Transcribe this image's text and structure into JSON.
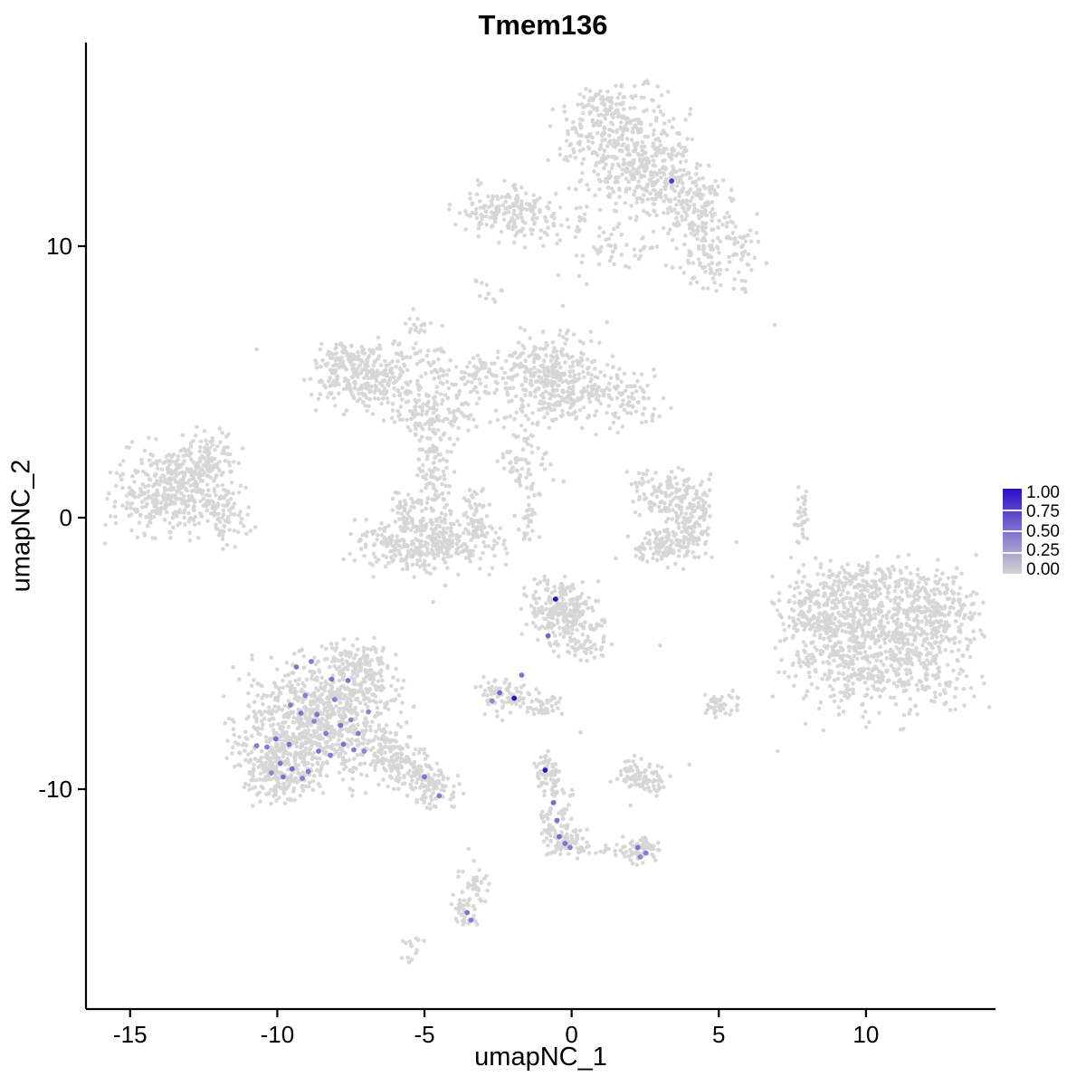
{
  "title": "Tmem136",
  "axes": {
    "x": {
      "label": "umapNC_1",
      "tick_labels": [
        "-15",
        "-10",
        "-5",
        "0",
        "5",
        "10"
      ],
      "tick_values": [
        -15,
        -10,
        -5,
        0,
        5,
        10
      ],
      "domain": [
        -16.5,
        14.4
      ]
    },
    "y": {
      "label": "umapNC_2",
      "tick_labels": [
        "10",
        "0",
        "-10"
      ],
      "tick_values": [
        10,
        0,
        -10
      ],
      "domain": [
        -18.1,
        17.5
      ]
    }
  },
  "legend": {
    "labels": [
      "1.00",
      "0.75",
      "0.50",
      "0.25",
      "0.00"
    ],
    "high_color": "#2C0FC9",
    "low_color": "#D3D3D3"
  },
  "style": {
    "gray_point_color": "#D6D6D6",
    "axis_color": "#000000",
    "text_color": "#000000",
    "background": "#FFFFFF"
  },
  "chart_data": {
    "type": "scatter",
    "title": "Tmem136",
    "xlabel": "umapNC_1",
    "ylabel": "umapNC_2",
    "xlim": [
      -16.5,
      14.4
    ],
    "ylim": [
      -18.1,
      17.5
    ],
    "grid": false,
    "legend_position": "right",
    "legend_scale": {
      "min": 0.0,
      "max": 1.0,
      "breaks": [
        1.0,
        0.75,
        0.5,
        0.25,
        0.0
      ]
    },
    "colors": {
      "low": "#D3D3D3",
      "high": "#2C0FC9"
    },
    "background_clusters": [
      {
        "id": "top-main",
        "cx": 1.6,
        "cy": 14.0,
        "sx": 1.05,
        "sy": 0.95,
        "n": 340
      },
      {
        "id": "top-spur",
        "cx": 1.0,
        "cy": 15.3,
        "sx": 0.35,
        "sy": 0.3,
        "n": 28
      },
      {
        "id": "top-lower",
        "cx": 2.9,
        "cy": 12.5,
        "sx": 0.85,
        "sy": 0.75,
        "n": 220
      },
      {
        "id": "top-right-a",
        "cx": 4.1,
        "cy": 11.6,
        "sx": 0.6,
        "sy": 0.55,
        "n": 110
      },
      {
        "id": "top-right-b",
        "cx": 4.9,
        "cy": 9.9,
        "sx": 0.75,
        "sy": 0.8,
        "n": 150
      },
      {
        "id": "top-below-sparse",
        "cx": 1.4,
        "cy": 10.0,
        "sx": 0.8,
        "sy": 0.65,
        "n": 55
      },
      {
        "id": "top-left-band",
        "cx": -2.4,
        "cy": 11.3,
        "sx": 0.75,
        "sy": 0.5,
        "n": 140
      },
      {
        "id": "top-left-band-b",
        "cx": -0.8,
        "cy": 11.0,
        "sx": 0.8,
        "sy": 0.5,
        "n": 60
      },
      {
        "id": "small-dash-a",
        "cx": -2.9,
        "cy": 8.4,
        "sx": 0.3,
        "sy": 0.25,
        "n": 12
      },
      {
        "id": "streak-a",
        "cx": -5.2,
        "cy": 7.0,
        "sx": 0.18,
        "sy": 0.35,
        "n": 14
      },
      {
        "id": "streak-b",
        "cx": -4.55,
        "cy": 5.2,
        "sx": 0.28,
        "sy": 1.0,
        "n": 50,
        "rot": 15
      },
      {
        "id": "streak-c",
        "cx": -3.8,
        "cy": 3.9,
        "sx": 0.3,
        "sy": 0.55,
        "n": 28
      },
      {
        "id": "mid-left-lobe",
        "cx": -6.9,
        "cy": 5.2,
        "sx": 0.95,
        "sy": 0.6,
        "n": 300
      },
      {
        "id": "mid-left-tail",
        "cx": -7.95,
        "cy": 6.0,
        "sx": 0.35,
        "sy": 0.3,
        "n": 35
      },
      {
        "id": "mid-connector",
        "cx": -5.3,
        "cy": 3.8,
        "sx": 0.5,
        "sy": 0.5,
        "n": 70,
        "rot": -30
      },
      {
        "id": "mid-stem",
        "cx": -4.65,
        "cy": 1.6,
        "sx": 0.32,
        "sy": 1.5,
        "n": 150
      },
      {
        "id": "mid-cup",
        "cx": -4.9,
        "cy": -1.0,
        "sx": 1.25,
        "sy": 0.5,
        "n": 340
      },
      {
        "id": "mid-cup-left",
        "cx": -5.7,
        "cy": 0.2,
        "sx": 0.22,
        "sy": 0.5,
        "n": 50
      },
      {
        "id": "mid-cup-right",
        "cx": -3.2,
        "cy": 0.1,
        "sx": 0.22,
        "sy": 0.5,
        "n": 50
      },
      {
        "id": "mid-right-lobe",
        "cx": -0.7,
        "cy": 5.0,
        "sx": 0.95,
        "sy": 0.85,
        "n": 380
      },
      {
        "id": "mid-right-tail",
        "cx": 1.7,
        "cy": 4.3,
        "sx": 0.75,
        "sy": 0.5,
        "n": 100
      },
      {
        "id": "mid-below-streak",
        "cx": -1.6,
        "cy": 1.9,
        "sx": 0.45,
        "sy": 0.8,
        "n": 70,
        "rot": 20
      },
      {
        "id": "mid-below-dash",
        "cx": -1.5,
        "cy": -0.3,
        "sx": 0.2,
        "sy": 0.45,
        "n": 22
      },
      {
        "id": "mid-bridge",
        "cx": -3.1,
        "cy": 5.2,
        "sx": 0.55,
        "sy": 0.4,
        "n": 55
      },
      {
        "id": "far-left-main",
        "cx": -13.5,
        "cy": 1.0,
        "sx": 1.05,
        "sy": 0.85,
        "n": 450
      },
      {
        "id": "far-left-top",
        "cx": -12.3,
        "cy": 2.3,
        "sx": 0.45,
        "sy": 0.45,
        "n": 70
      },
      {
        "id": "far-left-tail",
        "cx": -11.7,
        "cy": 0.1,
        "sx": 0.4,
        "sy": 0.6,
        "n": 55
      },
      {
        "id": "center-right-a",
        "cx": 3.3,
        "cy": 0.9,
        "sx": 0.7,
        "sy": 0.4,
        "n": 120
      },
      {
        "id": "center-right-b",
        "cx": 3.95,
        "cy": -0.2,
        "sx": 0.45,
        "sy": 0.6,
        "n": 130
      },
      {
        "id": "center-right-c",
        "cx": 3.1,
        "cy": -1.1,
        "sx": 0.6,
        "sy": 0.35,
        "n": 90
      },
      {
        "id": "right-dash",
        "cx": 7.85,
        "cy": 0.2,
        "sx": 0.12,
        "sy": 0.6,
        "n": 32
      },
      {
        "id": "right-main",
        "cx": 10.5,
        "cy": -4.6,
        "sx": 1.55,
        "sy": 1.35,
        "n": 900
      },
      {
        "id": "right-west",
        "cx": 8.5,
        "cy": -3.5,
        "sx": 0.7,
        "sy": 0.8,
        "n": 190
      },
      {
        "id": "right-northeast",
        "cx": 12.5,
        "cy": -3.2,
        "sx": 0.65,
        "sy": 0.6,
        "n": 120
      },
      {
        "id": "right-north-edge",
        "cx": 10.0,
        "cy": -2.4,
        "sx": 0.9,
        "sy": 0.35,
        "n": 80
      },
      {
        "id": "bottomleft-main",
        "cx": -8.6,
        "cy": -7.6,
        "sx": 1.35,
        "sy": 1.15,
        "n": 820
      },
      {
        "id": "bottomleft-south",
        "cx": -9.9,
        "cy": -9.3,
        "sx": 0.65,
        "sy": 0.55,
        "n": 210
      },
      {
        "id": "bottomleft-north",
        "cx": -7.3,
        "cy": -5.7,
        "sx": 0.65,
        "sy": 0.6,
        "n": 170
      },
      {
        "id": "bottomleft-tail-a",
        "cx": -6.0,
        "cy": -8.9,
        "sx": 0.55,
        "sy": 0.45,
        "n": 130,
        "rot": -35
      },
      {
        "id": "bottomleft-tail-b",
        "cx": -4.8,
        "cy": -9.8,
        "sx": 0.5,
        "sy": 0.4,
        "n": 110,
        "rot": -30
      },
      {
        "id": "center-bottom-main",
        "cx": -0.3,
        "cy": -3.4,
        "sx": 0.6,
        "sy": 0.55,
        "n": 230
      },
      {
        "id": "center-bottom-tail",
        "cx": 0.4,
        "cy": -4.6,
        "sx": 0.5,
        "sy": 0.4,
        "n": 60,
        "rot": -25
      },
      {
        "id": "center-bottom-west",
        "cx": -2.3,
        "cy": -6.6,
        "sx": 0.5,
        "sy": 0.38,
        "n": 80,
        "rot": -20
      },
      {
        "id": "center-bottom-knot",
        "cx": -0.9,
        "cy": -6.9,
        "sx": 0.3,
        "sy": 0.25,
        "n": 35
      },
      {
        "id": "stream-top",
        "cx": -0.85,
        "cy": -9.35,
        "sx": 0.25,
        "sy": 0.35,
        "n": 45
      },
      {
        "id": "stream-stem",
        "cx": -0.55,
        "cy": -10.9,
        "sx": 0.28,
        "sy": 0.75,
        "n": 70
      },
      {
        "id": "stream-knot",
        "cx": -0.2,
        "cy": -11.9,
        "sx": 0.4,
        "sy": 0.3,
        "n": 55
      },
      {
        "id": "stream-branch",
        "cx": 1.0,
        "cy": -12.2,
        "sx": 0.85,
        "sy": 0.18,
        "n": 40,
        "rot": -8
      },
      {
        "id": "small-right-blob",
        "cx": 2.35,
        "cy": -9.5,
        "sx": 0.45,
        "sy": 0.28,
        "n": 90,
        "rot": -25
      },
      {
        "id": "small-right-knot",
        "cx": 2.4,
        "cy": -12.2,
        "sx": 0.35,
        "sy": 0.28,
        "n": 55
      },
      {
        "id": "bottom-streak-a",
        "cx": -3.3,
        "cy": -13.5,
        "sx": 0.2,
        "sy": 0.4,
        "n": 35,
        "rot": 15
      },
      {
        "id": "bottom-streak-b",
        "cx": -3.6,
        "cy": -14.5,
        "sx": 0.2,
        "sy": 0.4,
        "n": 38,
        "rot": 15
      },
      {
        "id": "bottom-dash",
        "cx": -5.5,
        "cy": -15.9,
        "sx": 0.22,
        "sy": 0.25,
        "n": 14
      },
      {
        "id": "small-blob-right",
        "cx": 5.1,
        "cy": -6.9,
        "sx": 0.28,
        "sy": 0.25,
        "n": 40
      }
    ],
    "background_singles": [
      [
        -10.7,
        6.2
      ],
      [
        6.9,
        7.1
      ],
      [
        3.0,
        -4.7
      ],
      [
        4.0,
        -9.1
      ],
      [
        -4.3,
        -2.5
      ],
      [
        -4.7,
        -3.1
      ],
      [
        -2.8,
        -2.1
      ],
      [
        0.3,
        -7.9
      ],
      [
        2.0,
        -10.6
      ],
      [
        -3.5,
        -12.2
      ],
      [
        1.5,
        -1.5
      ],
      [
        7.0,
        -8.6
      ],
      [
        -11.5,
        -5.5
      ],
      [
        5.6,
        -0.9
      ],
      [
        -0.3,
        7.8
      ],
      [
        1.2,
        7.2
      ]
    ],
    "expression_points": [
      [
        3.4,
        12.4,
        0.8
      ],
      [
        -0.55,
        -3.0,
        1.0
      ],
      [
        -0.8,
        -4.35,
        0.55
      ],
      [
        -1.7,
        -5.8,
        0.5
      ],
      [
        -2.45,
        -6.45,
        0.55
      ],
      [
        -1.95,
        -6.65,
        1.0
      ],
      [
        -2.7,
        -6.75,
        0.4
      ],
      [
        -0.9,
        -9.3,
        1.0
      ],
      [
        -0.62,
        -10.5,
        0.55
      ],
      [
        -0.5,
        -11.15,
        0.5
      ],
      [
        -0.42,
        -11.75,
        0.55
      ],
      [
        -0.22,
        -12.0,
        0.5
      ],
      [
        -0.05,
        -12.15,
        0.45
      ],
      [
        2.25,
        -12.15,
        0.5
      ],
      [
        2.52,
        -12.35,
        0.45
      ],
      [
        2.33,
        -12.5,
        0.4
      ],
      [
        -3.55,
        -14.55,
        0.5
      ],
      [
        -3.42,
        -14.82,
        0.45
      ],
      [
        -5.0,
        -9.55,
        0.5
      ],
      [
        -4.5,
        -10.25,
        0.45
      ],
      [
        -9.35,
        -5.5,
        0.5
      ],
      [
        -8.85,
        -5.3,
        0.45
      ],
      [
        -7.6,
        -6.0,
        0.5
      ],
      [
        -8.05,
        -6.7,
        0.45
      ],
      [
        -9.2,
        -7.2,
        0.5
      ],
      [
        -8.75,
        -7.5,
        0.4
      ],
      [
        -10.05,
        -8.15,
        0.55
      ],
      [
        -9.6,
        -8.35,
        0.5
      ],
      [
        -10.35,
        -8.45,
        0.45
      ],
      [
        -8.6,
        -8.6,
        0.5
      ],
      [
        -8.2,
        -8.75,
        0.45
      ],
      [
        -9.9,
        -9.05,
        0.5
      ],
      [
        -9.5,
        -9.25,
        0.55
      ],
      [
        -8.95,
        -9.35,
        0.45
      ],
      [
        -10.2,
        -9.4,
        0.4
      ],
      [
        -9.8,
        -9.55,
        0.5
      ],
      [
        -9.15,
        -9.6,
        0.45
      ],
      [
        -7.75,
        -8.35,
        0.5
      ],
      [
        -7.4,
        -8.55,
        0.45
      ],
      [
        -7.05,
        -8.6,
        0.4
      ],
      [
        -10.7,
        -8.4,
        0.45
      ],
      [
        -7.85,
        -7.65,
        0.5
      ],
      [
        -8.35,
        -7.95,
        0.45
      ],
      [
        -7.5,
        -7.45,
        0.4
      ],
      [
        -8.65,
        -7.25,
        0.5
      ],
      [
        -9.05,
        -6.55,
        0.45
      ],
      [
        -8.15,
        -5.95,
        0.5
      ],
      [
        -7.25,
        -7.95,
        0.45
      ],
      [
        -6.9,
        -7.15,
        0.4
      ],
      [
        -9.55,
        -6.9,
        0.45
      ]
    ]
  }
}
